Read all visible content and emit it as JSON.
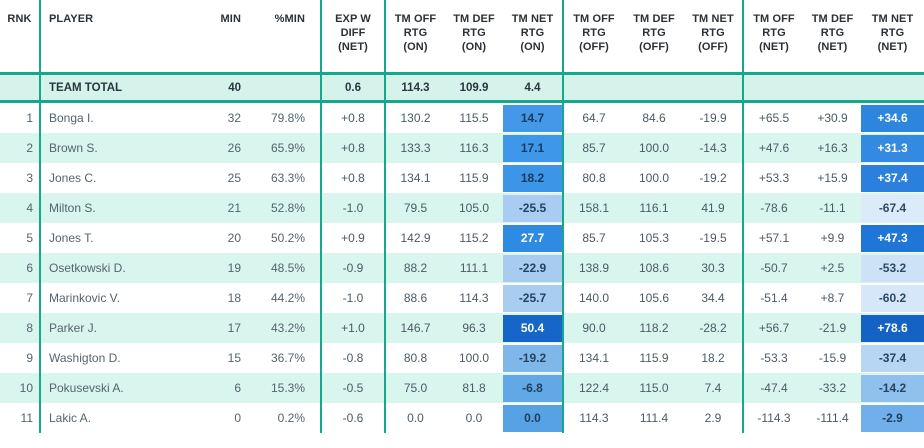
{
  "colors": {
    "teal": "#14a88d",
    "row_stripe": "#d8f5ee",
    "team_total_band": "#d6f3eb",
    "header_text": "#2b3137",
    "data_text": "#4b5a64"
  },
  "table": {
    "columns": [
      {
        "key": "rnk",
        "label": "RNK"
      },
      {
        "key": "player",
        "label": "PLAYER"
      },
      {
        "key": "min",
        "label": "MIN"
      },
      {
        "key": "pmin",
        "label": "%MIN"
      },
      {
        "key": "expw",
        "label": "EXP W\nDIFF\n(NET)"
      },
      {
        "key": "off_on",
        "label": "TM OFF\nRTG\n(ON)"
      },
      {
        "key": "def_on",
        "label": "TM DEF\nRTG\n(ON)"
      },
      {
        "key": "net_on",
        "label": "TM NET\nRTG\n(ON)"
      },
      {
        "key": "off_off",
        "label": "TM OFF\nRTG\n(OFF)"
      },
      {
        "key": "def_off",
        "label": "TM DEF\nRTG\n(OFF)"
      },
      {
        "key": "net_off",
        "label": "TM NET\nRTG\n(OFF)"
      },
      {
        "key": "off_net",
        "label": "TM OFF\nRTG\n(NET)"
      },
      {
        "key": "def_net",
        "label": "TM DEF\nRTG\n(NET)"
      },
      {
        "key": "net_net",
        "label": "TM NET\nRTG\n(NET)"
      }
    ],
    "team_total": {
      "label": "TEAM TOTAL",
      "min": "40",
      "exp_w": "0.6",
      "off_on": "114.3",
      "def_on": "109.9",
      "net_on": "4.4"
    },
    "rows": [
      {
        "rnk": "1",
        "player": "Bonga I.",
        "min": "32",
        "pmin": "79.8%",
        "exp_w": "+0.8",
        "off_on": "130.2",
        "def_on": "115.5",
        "net_on": {
          "v": "14.7",
          "bg": "#4399e8",
          "fg": "#163a5f"
        },
        "off_off": "64.7",
        "def_off": "84.6",
        "net_off": "-19.9",
        "off_net": "+65.5",
        "def_net": "+30.9",
        "net_net": {
          "v": "+34.6",
          "bg": "#2d85de",
          "fg": "#ffffff"
        }
      },
      {
        "rnk": "2",
        "player": "Brown S.",
        "min": "26",
        "pmin": "65.9%",
        "exp_w": "+0.8",
        "off_on": "133.3",
        "def_on": "116.3",
        "net_on": {
          "v": "17.1",
          "bg": "#3f97ea",
          "fg": "#163a5f"
        },
        "off_off": "85.7",
        "def_off": "100.0",
        "net_off": "-14.3",
        "off_net": "+47.6",
        "def_net": "+16.3",
        "net_net": {
          "v": "+31.3",
          "bg": "#338ae0",
          "fg": "#ffffff"
        }
      },
      {
        "rnk": "3",
        "player": "Jones C.",
        "min": "25",
        "pmin": "63.3%",
        "exp_w": "+0.8",
        "off_on": "134.1",
        "def_on": "115.9",
        "net_on": {
          "v": "18.2",
          "bg": "#3d95e8",
          "fg": "#163a5f"
        },
        "off_off": "80.8",
        "def_off": "100.0",
        "net_off": "-19.2",
        "off_net": "+53.3",
        "def_net": "+15.9",
        "net_net": {
          "v": "+37.4",
          "bg": "#2a80dc",
          "fg": "#ffffff"
        }
      },
      {
        "rnk": "4",
        "player": "Milton S.",
        "min": "21",
        "pmin": "52.8%",
        "exp_w": "-1.0",
        "off_on": "79.5",
        "def_on": "105.0",
        "net_on": {
          "v": "-25.5",
          "bg": "#a9cdf2",
          "fg": "#23435f"
        },
        "off_off": "158.1",
        "def_off": "116.1",
        "net_off": "41.9",
        "off_net": "-78.6",
        "def_net": "-11.1",
        "net_net": {
          "v": "-67.4",
          "bg": "#dcebf9",
          "fg": "#2c4a66"
        }
      },
      {
        "rnk": "5",
        "player": "Jones T.",
        "min": "20",
        "pmin": "50.2%",
        "exp_w": "+0.9",
        "off_on": "142.9",
        "def_on": "115.2",
        "net_on": {
          "v": "27.7",
          "bg": "#2f8ae2",
          "fg": "#ffffff"
        },
        "off_off": "85.7",
        "def_off": "105.3",
        "net_off": "-19.5",
        "off_net": "+57.1",
        "def_net": "+9.9",
        "net_net": {
          "v": "+47.3",
          "bg": "#1f76d6",
          "fg": "#ffffff"
        }
      },
      {
        "rnk": "6",
        "player": "Osetkowski D.",
        "min": "19",
        "pmin": "48.5%",
        "exp_w": "-0.9",
        "off_on": "88.2",
        "def_on": "111.1",
        "net_on": {
          "v": "-22.9",
          "bg": "#a7ccf0",
          "fg": "#23435f"
        },
        "off_off": "138.9",
        "def_off": "108.6",
        "net_off": "30.3",
        "off_net": "-50.7",
        "def_net": "+2.5",
        "net_net": {
          "v": "-53.2",
          "bg": "#cde2f7",
          "fg": "#2c4a66"
        }
      },
      {
        "rnk": "7",
        "player": "Marinkovic V.",
        "min": "18",
        "pmin": "44.2%",
        "exp_w": "-1.0",
        "off_on": "88.6",
        "def_on": "114.3",
        "net_on": {
          "v": "-25.7",
          "bg": "#a9cdf1",
          "fg": "#23435f"
        },
        "off_off": "140.0",
        "def_off": "105.6",
        "net_off": "34.4",
        "off_net": "-51.4",
        "def_net": "+8.7",
        "net_net": {
          "v": "-60.2",
          "bg": "#d5e7f8",
          "fg": "#2c4a66"
        }
      },
      {
        "rnk": "8",
        "player": "Parker J.",
        "min": "17",
        "pmin": "43.2%",
        "exp_w": "+1.0",
        "off_on": "146.7",
        "def_on": "96.3",
        "net_on": {
          "v": "50.4",
          "bg": "#1566c8",
          "fg": "#ffffff"
        },
        "off_off": "90.0",
        "def_off": "118.2",
        "net_off": "-28.2",
        "off_net": "+56.7",
        "def_net": "-21.9",
        "net_net": {
          "v": "+78.6",
          "bg": "#1463c4",
          "fg": "#ffffff"
        }
      },
      {
        "rnk": "9",
        "player": "Washigton D.",
        "min": "15",
        "pmin": "36.7%",
        "exp_w": "-0.8",
        "off_on": "80.8",
        "def_on": "100.0",
        "net_on": {
          "v": "-19.2",
          "bg": "#80b7eb",
          "fg": "#23435f"
        },
        "off_off": "134.1",
        "def_off": "115.9",
        "net_off": "18.2",
        "off_net": "-53.3",
        "def_net": "-15.9",
        "net_net": {
          "v": "-37.4",
          "bg": "#b7d6f4",
          "fg": "#23435f"
        }
      },
      {
        "rnk": "10",
        "player": "Pokusevski A.",
        "min": "6",
        "pmin": "15.3%",
        "exp_w": "-0.5",
        "off_on": "75.0",
        "def_on": "81.8",
        "net_on": {
          "v": "-6.8",
          "bg": "#62a8e6",
          "fg": "#1d3f61"
        },
        "off_off": "122.4",
        "def_off": "115.0",
        "net_off": "7.4",
        "off_net": "-47.4",
        "def_net": "-33.2",
        "net_net": {
          "v": "-14.2",
          "bg": "#8fc0ee",
          "fg": "#23435f"
        }
      },
      {
        "rnk": "11",
        "player": "Lakic A.",
        "min": "0",
        "pmin": "0.2%",
        "exp_w": "-0.6",
        "off_on": "0.0",
        "def_on": "0.0",
        "net_on": {
          "v": "0.0",
          "bg": "#57a2e4",
          "fg": "#1d3f61"
        },
        "off_off": "114.3",
        "def_off": "111.4",
        "net_off": "2.9",
        "off_net": "-114.3",
        "def_net": "-111.4",
        "net_net": {
          "v": "-2.9",
          "bg": "#70afe9",
          "fg": "#1d3f61"
        }
      }
    ]
  }
}
